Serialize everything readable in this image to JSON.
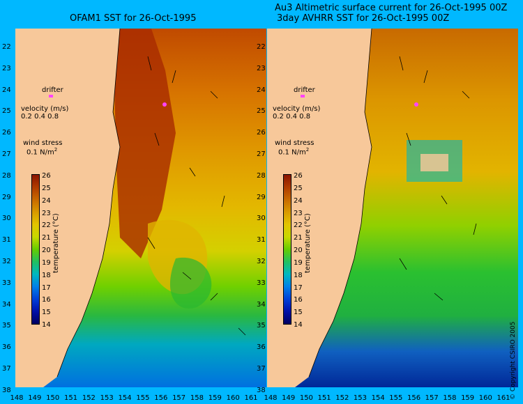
{
  "left_panel": {
    "title": "OFAM1 SST for 26-Oct-1995"
  },
  "right_panel": {
    "title_line1": "Au3 Altimetric surface current for 26-Oct-1995 00Z",
    "title_line2": "3day AVHRR SST for 26-Oct-1995 00Z"
  },
  "latitude_labels": [
    "22",
    "23",
    "24",
    "25",
    "26",
    "27",
    "28",
    "29",
    "30",
    "31",
    "32",
    "33",
    "34",
    "35",
    "36",
    "37",
    "38"
  ],
  "longitude_labels": [
    "148",
    "149",
    "150",
    "151",
    "152",
    "153",
    "154",
    "155",
    "156",
    "157",
    "158",
    "159",
    "160",
    "161"
  ],
  "legend": {
    "drifter_label": "drifter",
    "velocity_label": "velocity (m/s)",
    "velocity_scale": "0.2 0.4 0.8",
    "wind_label": "wind stress",
    "wind_scale_value": "0.1",
    "wind_scale_unit": "N/m",
    "wind_scale_sup": "2"
  },
  "colorbar": {
    "ticks": [
      "26",
      "25",
      "24",
      "23",
      "22",
      "21",
      "20",
      "19",
      "18",
      "17",
      "16",
      "15",
      "14"
    ],
    "label": "temperature (°C)",
    "colors": [
      "#8b1500",
      "#b03c00",
      "#c86a00",
      "#d99a00",
      "#e3c400",
      "#c8d800",
      "#66cc00",
      "#22c060",
      "#00b8c0",
      "#0080e8",
      "#0040d8",
      "#0010a8",
      "#000060"
    ]
  },
  "copyright": "© Copyright CSIRO 2005",
  "colors": {
    "ocean_bg": "#00b8ff",
    "land": "#f7c89a",
    "drifter": "#ff44ff"
  }
}
